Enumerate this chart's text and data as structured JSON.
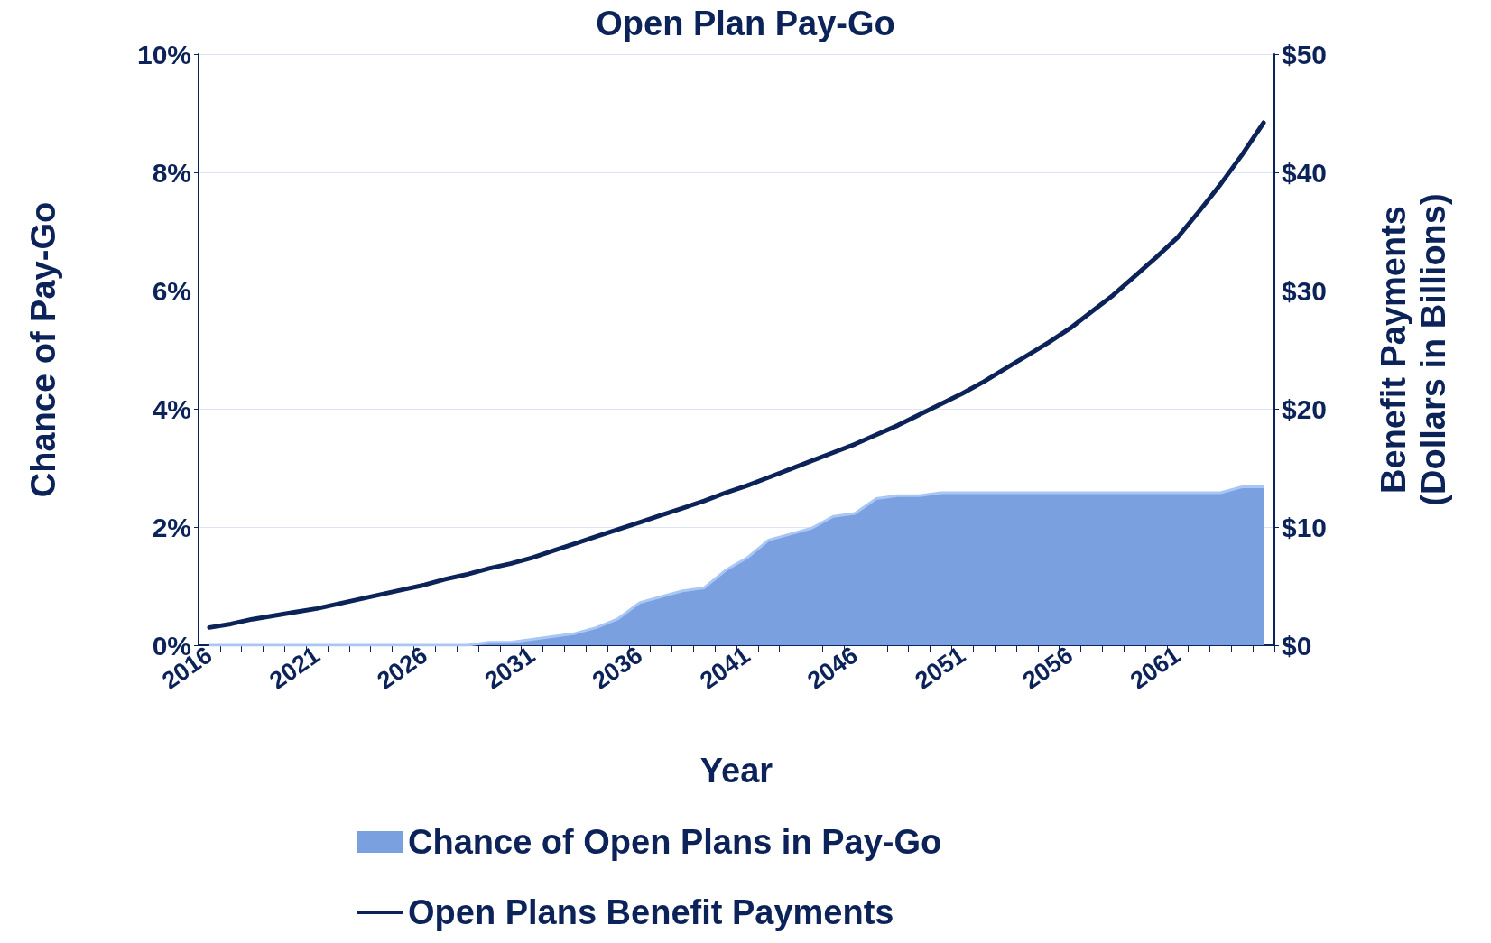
{
  "chart_data": {
    "type": "area",
    "title": "Open Plan Pay-Go",
    "xlabel": "Year",
    "ylabel": "Chance of Pay-Go",
    "y2label": "Benefit Payments\n(Dollars in Billions)",
    "categories": [
      "2016",
      null,
      null,
      null,
      null,
      "2021",
      null,
      null,
      null,
      null,
      "2026",
      null,
      null,
      null,
      null,
      "2031",
      null,
      null,
      null,
      null,
      "2036",
      null,
      null,
      null,
      null,
      "2041",
      null,
      null,
      null,
      null,
      "2046",
      null,
      null,
      null,
      null,
      "2051",
      null,
      null,
      null,
      null,
      "2056",
      null,
      null,
      null,
      null,
      "2061",
      null,
      null,
      null,
      null
    ],
    "series": [
      {
        "name": "Chance of Open Plans in Pay-Go",
        "color": "#7aa0e0",
        "values": [
          0,
          0,
          0,
          0,
          0,
          0,
          0,
          0,
          0,
          0,
          0,
          0,
          0,
          0.05,
          0.05,
          0.1,
          0.15,
          0.2,
          0.3,
          0.45,
          0.72,
          0.82,
          0.92,
          0.97,
          1.27,
          1.48,
          1.78,
          1.88,
          1.98,
          2.18,
          2.23,
          2.48,
          2.53,
          2.53,
          2.58,
          2.58,
          2.58,
          2.58,
          2.58,
          2.58,
          2.58,
          2.58,
          2.58,
          2.58,
          2.58,
          2.58,
          2.58,
          2.58,
          2.68,
          2.68
        ]
      },
      {
        "name": "Open Plans Benefit Payments",
        "type": "line",
        "axis": "y2",
        "color": "#0c2359",
        "values": [
          1.5,
          1.8,
          2.2,
          2.5,
          2.8,
          3.1,
          3.5,
          3.9,
          4.3,
          4.7,
          5.1,
          5.6,
          6.0,
          6.5,
          6.9,
          7.4,
          8.0,
          8.6,
          9.2,
          9.8,
          10.4,
          11.0,
          11.6,
          12.2,
          12.9,
          13.5,
          14.2,
          14.9,
          15.6,
          16.3,
          17.0,
          17.8,
          18.6,
          19.5,
          20.4,
          21.3,
          22.3,
          23.4,
          24.5,
          25.6,
          26.8,
          28.2,
          29.6,
          31.2,
          32.8,
          34.5,
          36.7,
          39.0,
          41.5,
          44.2
        ]
      }
    ],
    "ylim": [
      0,
      10
    ],
    "yticks": [
      {
        "value": 0,
        "label": "0%"
      },
      {
        "value": 2,
        "label": "2%"
      },
      {
        "value": 4,
        "label": "4%"
      },
      {
        "value": 6,
        "label": "6%"
      },
      {
        "value": 8,
        "label": "8%"
      },
      {
        "value": 10,
        "label": "10%"
      }
    ],
    "y2lim": [
      0,
      50
    ],
    "y2ticks": [
      {
        "value": 0,
        "label": "$0"
      },
      {
        "value": 10,
        "label": "$10"
      },
      {
        "value": 20,
        "label": "$20"
      },
      {
        "value": 30,
        "label": "$30"
      },
      {
        "value": 40,
        "label": "$40"
      },
      {
        "value": 50,
        "label": "$50"
      }
    ],
    "grid": "y",
    "legend": "bottom",
    "marker": "none",
    "line_style": "solid"
  }
}
